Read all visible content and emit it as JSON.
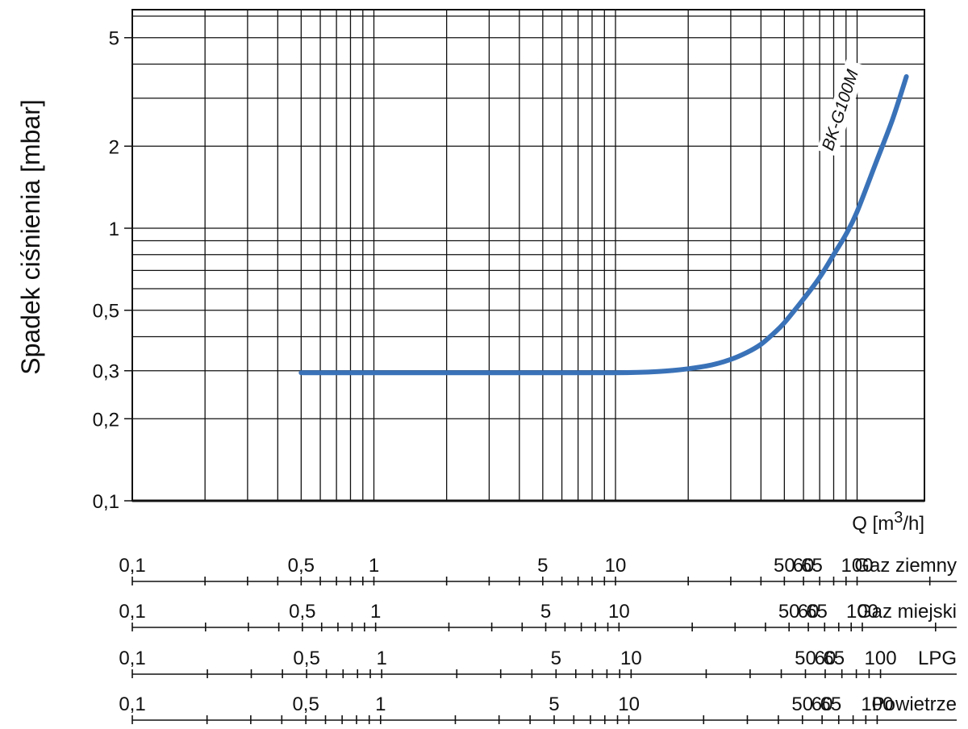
{
  "chart_data": {
    "type": "line",
    "ylabel": "Spadek ciśnienia [mbar]",
    "xlabel": {
      "prefix": "Q [m",
      "sup": "3",
      "suffix": "/h]"
    },
    "yscale": "log",
    "ylim": [
      0.1,
      6
    ],
    "xscale": "log",
    "xlim": [
      0.1,
      190
    ],
    "grid": true,
    "y_ticks": [
      {
        "value": 0.1,
        "label": "0,1"
      },
      {
        "value": 0.2,
        "label": "0,2"
      },
      {
        "value": 0.3,
        "label": "0,3"
      },
      {
        "value": 0.5,
        "label": "0,5"
      },
      {
        "value": 1,
        "label": "1"
      },
      {
        "value": 2,
        "label": "2"
      },
      {
        "value": 5,
        "label": "5"
      }
    ],
    "series": [
      {
        "name": "BK-G100M",
        "color": "#3a72b8",
        "x": [
          0.5,
          1,
          5,
          10,
          15,
          20,
          25,
          30,
          35,
          40,
          45,
          50,
          60,
          70,
          80,
          90,
          100,
          120,
          140,
          160
        ],
        "y": [
          0.295,
          0.295,
          0.295,
          0.295,
          0.298,
          0.305,
          0.315,
          0.33,
          0.35,
          0.375,
          0.41,
          0.45,
          0.55,
          0.66,
          0.8,
          0.95,
          1.15,
          1.75,
          2.5,
          3.6
        ]
      }
    ],
    "flow_scales": [
      {
        "name": "Gaz ziemny",
        "labels": [
          {
            "value": 0.1,
            "label": "0,1"
          },
          {
            "value": 0.5,
            "label": "0,5"
          },
          {
            "value": 1,
            "label": "1"
          },
          {
            "value": 5,
            "label": "5"
          },
          {
            "value": 10,
            "label": "10"
          },
          {
            "value": 50,
            "label": "50"
          },
          {
            "value": 60,
            "label": "60"
          },
          {
            "value": 65,
            "label": "65"
          },
          {
            "value": 100,
            "label": "100"
          }
        ],
        "max": 190
      },
      {
        "name": "Gaz miejski",
        "labels": [
          {
            "value": 0.1,
            "label": "0,1"
          },
          {
            "value": 0.5,
            "label": "0,5"
          },
          {
            "value": 1,
            "label": "1"
          },
          {
            "value": 5,
            "label": "5"
          },
          {
            "value": 10,
            "label": "10"
          },
          {
            "value": 50,
            "label": "50"
          },
          {
            "value": 60,
            "label": "60"
          },
          {
            "value": 65,
            "label": "65"
          },
          {
            "value": 100,
            "label": "100"
          }
        ],
        "max": 180
      },
      {
        "name": "LPG",
        "labels": [
          {
            "value": 0.1,
            "label": "0,1"
          },
          {
            "value": 0.5,
            "label": "0,5"
          },
          {
            "value": 1,
            "label": "1"
          },
          {
            "value": 5,
            "label": "5"
          },
          {
            "value": 10,
            "label": "10"
          },
          {
            "value": 50,
            "label": "50"
          },
          {
            "value": 60,
            "label": "60"
          },
          {
            "value": 65,
            "label": "65"
          },
          {
            "value": 100,
            "label": "100"
          }
        ],
        "max": 150
      },
      {
        "name": "Powietrze",
        "labels": [
          {
            "value": 0.1,
            "label": "0,1"
          },
          {
            "value": 0.5,
            "label": "0,5"
          },
          {
            "value": 1,
            "label": "1"
          },
          {
            "value": 5,
            "label": "5"
          },
          {
            "value": 10,
            "label": "10"
          },
          {
            "value": 50,
            "label": "50"
          },
          {
            "value": 60,
            "label": "60"
          },
          {
            "value": 65,
            "label": "65"
          },
          {
            "value": 100,
            "label": "100"
          }
        ],
        "max": 155
      }
    ]
  }
}
